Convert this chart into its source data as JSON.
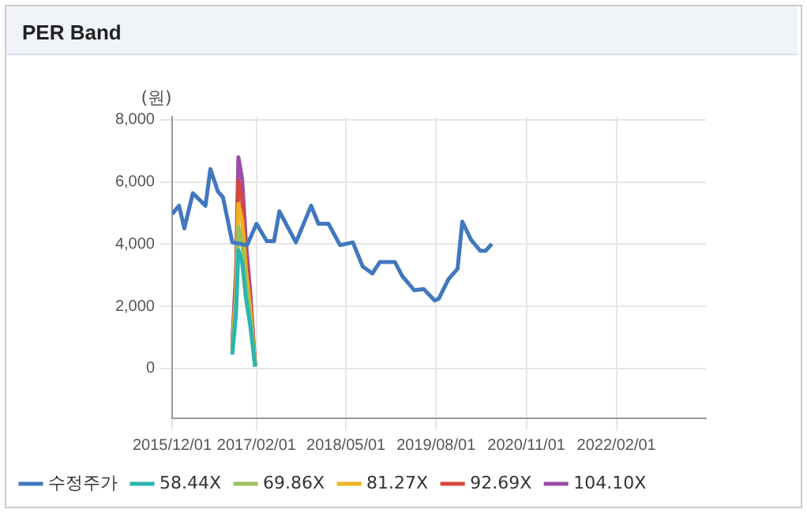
{
  "chart_data": {
    "type": "line",
    "title": "PER Band",
    "ylabel": "(원)",
    "xlim": [
      "2015-12-01",
      "2023-05-01"
    ],
    "xticks": [
      {
        "value": "2015-12-01",
        "label": "2015/12/01"
      },
      {
        "value": "2017-02-01",
        "label": "2017/02/01"
      },
      {
        "value": "2018-05-01",
        "label": "2018/05/01"
      },
      {
        "value": "2019-08-01",
        "label": "2019/08/01"
      },
      {
        "value": "2020-11-01",
        "label": "2020/11/01"
      },
      {
        "value": "2022-02-01",
        "label": "2022/02/01"
      }
    ],
    "ylim": [
      -1600,
      8100
    ],
    "yticks": [
      {
        "value": 0,
        "label": "0"
      },
      {
        "value": 2000,
        "label": "2,000"
      },
      {
        "value": 4000,
        "label": "4,000"
      },
      {
        "value": 6000,
        "label": "6,000"
      },
      {
        "value": 8000,
        "label": "8,000"
      }
    ],
    "grid": true,
    "legend": "bottom",
    "marker": "none",
    "line_style": "solid",
    "series": [
      {
        "name": "수정주가",
        "color": "#4178be",
        "x": [
          "2015-12-01",
          "2016-01-05",
          "2016-02-01",
          "2016-03-15",
          "2016-05-18",
          "2016-06-12",
          "2016-07-20",
          "2016-08-15",
          "2016-10-01",
          "2016-12-15",
          "2017-02-01",
          "2017-03-25",
          "2017-05-01",
          "2017-05-28",
          "2017-08-20",
          "2017-11-05",
          "2017-12-12",
          "2018-02-01",
          "2018-04-01",
          "2018-06-05",
          "2018-07-25",
          "2018-09-12",
          "2018-10-20",
          "2019-01-04",
          "2019-02-10",
          "2019-04-12",
          "2019-05-30",
          "2019-07-25",
          "2019-08-15",
          "2019-10-03",
          "2019-11-18",
          "2019-12-12",
          "2020-01-25",
          "2020-03-12",
          "2020-04-08",
          "2020-05-10"
        ],
        "values": [
          4970,
          5240,
          4510,
          5640,
          5240,
          6420,
          5700,
          5510,
          4060,
          3970,
          4660,
          4100,
          4100,
          5060,
          4060,
          5240,
          4660,
          4660,
          3970,
          4060,
          3280,
          3060,
          3430,
          3430,
          2980,
          2520,
          2560,
          2190,
          2250,
          2880,
          3210,
          4730,
          4150,
          3790,
          3790,
          4010
        ]
      },
      {
        "name": "58.44X",
        "color": "#2bb5b0",
        "x": [
          "2016-10-01",
          "2016-10-20",
          "2016-11-01",
          "2016-11-20",
          "2016-12-10",
          "2017-01-01",
          "2017-01-25"
        ],
        "values": [
          450,
          1740,
          3810,
          3420,
          2240,
          1350,
          60
        ]
      },
      {
        "name": "69.86X",
        "color": "#97c25a",
        "x": [
          "2016-10-01",
          "2016-10-20",
          "2016-11-01",
          "2016-11-20",
          "2016-12-10",
          "2017-01-01",
          "2017-01-25"
        ],
        "values": [
          540,
          2080,
          4560,
          4090,
          2680,
          1610,
          70
        ]
      },
      {
        "name": "81.27X",
        "color": "#efb324",
        "x": [
          "2016-10-01",
          "2016-10-20",
          "2016-11-01",
          "2016-11-20",
          "2016-12-10",
          "2017-01-01",
          "2017-01-25"
        ],
        "values": [
          620,
          2420,
          5300,
          4760,
          3120,
          1870,
          80
        ]
      },
      {
        "name": "92.69X",
        "color": "#d8473d",
        "x": [
          "2016-10-01",
          "2016-10-20",
          "2016-11-01",
          "2016-11-20",
          "2016-12-10",
          "2017-01-01",
          "2017-01-25"
        ],
        "values": [
          710,
          2760,
          6050,
          5430,
          3560,
          2140,
          90
        ]
      },
      {
        "name": "104.10X",
        "color": "#9a4ea6",
        "x": [
          "2016-10-01",
          "2016-10-20",
          "2016-11-01",
          "2016-11-20",
          "2016-12-10",
          "2017-01-01",
          "2017-01-25"
        ],
        "values": [
          800,
          3100,
          6800,
          6100,
          4000,
          2400,
          100
        ]
      }
    ]
  }
}
